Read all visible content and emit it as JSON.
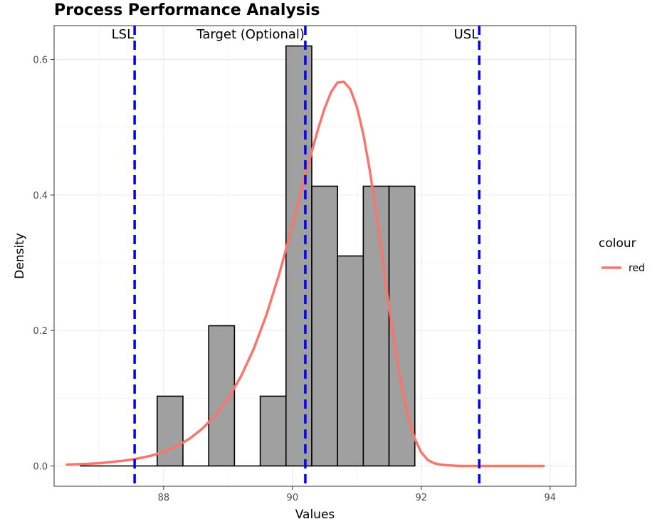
{
  "chart_data": {
    "type": "bar",
    "title": "Process Performance Analysis",
    "xlabel": "Values",
    "ylabel": "Density",
    "xlim": [
      86.3,
      94.4
    ],
    "ylim": [
      -0.03,
      0.65
    ],
    "x_ticks": [
      88,
      90,
      92,
      94
    ],
    "y_ticks": [
      0.0,
      0.2,
      0.4,
      0.6
    ],
    "x_tick_labels": [
      "88",
      "90",
      "92",
      "94"
    ],
    "y_tick_labels": [
      "0.0",
      "0.2",
      "0.4",
      "0.6"
    ],
    "grid": true,
    "histogram": {
      "bin_width": 0.4,
      "bins": [
        {
          "start": 86.7,
          "end": 87.1,
          "density": 0.0
        },
        {
          "start": 87.1,
          "end": 87.5,
          "density": 0.0
        },
        {
          "start": 87.5,
          "end": 87.9,
          "density": 0.0
        },
        {
          "start": 87.9,
          "end": 88.3,
          "density": 0.103
        },
        {
          "start": 88.3,
          "end": 88.7,
          "density": 0.0
        },
        {
          "start": 88.7,
          "end": 89.1,
          "density": 0.207
        },
        {
          "start": 89.1,
          "end": 89.5,
          "density": 0.0
        },
        {
          "start": 89.5,
          "end": 89.9,
          "density": 0.103
        },
        {
          "start": 89.9,
          "end": 90.3,
          "density": 0.62
        },
        {
          "start": 90.3,
          "end": 90.7,
          "density": 0.413
        },
        {
          "start": 90.7,
          "end": 91.1,
          "density": 0.31
        },
        {
          "start": 91.1,
          "end": 91.5,
          "density": 0.413
        },
        {
          "start": 91.5,
          "end": 91.9,
          "density": 0.413
        }
      ],
      "fill": "#a0a0a0",
      "stroke": "#000000"
    },
    "series": [
      {
        "name": "red",
        "type": "line",
        "color": "#f8766d",
        "x": [
          86.5,
          86.8,
          87.0,
          87.2,
          87.4,
          87.6,
          87.8,
          88.0,
          88.2,
          88.4,
          88.6,
          88.8,
          89.0,
          89.2,
          89.4,
          89.6,
          89.8,
          90.0,
          90.2,
          90.4,
          90.5,
          90.6,
          90.7,
          90.8,
          90.9,
          91.0,
          91.1,
          91.2,
          91.3,
          91.4,
          91.5,
          91.6,
          91.7,
          91.8,
          91.9,
          92.0,
          92.1,
          92.2,
          92.3,
          92.4,
          92.6,
          92.8,
          93.0,
          93.5,
          93.9
        ],
        "y": [
          0.002,
          0.003,
          0.004,
          0.006,
          0.008,
          0.011,
          0.015,
          0.021,
          0.029,
          0.04,
          0.055,
          0.074,
          0.099,
          0.132,
          0.173,
          0.224,
          0.285,
          0.355,
          0.43,
          0.498,
          0.528,
          0.552,
          0.566,
          0.567,
          0.556,
          0.53,
          0.49,
          0.437,
          0.374,
          0.305,
          0.236,
          0.171,
          0.115,
          0.071,
          0.04,
          0.02,
          0.009,
          0.004,
          0.002,
          0.001,
          0.0,
          0.0,
          0.0,
          0.0,
          0.0
        ]
      }
    ],
    "reference_lines": [
      {
        "label": "LSL",
        "x": 87.55,
        "color": "#0000ff",
        "style": "dashed"
      },
      {
        "label": "Target (Optional)",
        "x": 90.2,
        "color": "#0000ff",
        "style": "dashed"
      },
      {
        "label": "USL",
        "x": 92.9,
        "color": "#0000ff",
        "style": "dashed"
      }
    ],
    "legend": {
      "title": "colour",
      "placement": "right",
      "entries": [
        {
          "label": "red",
          "color": "#f8766d"
        }
      ]
    }
  }
}
